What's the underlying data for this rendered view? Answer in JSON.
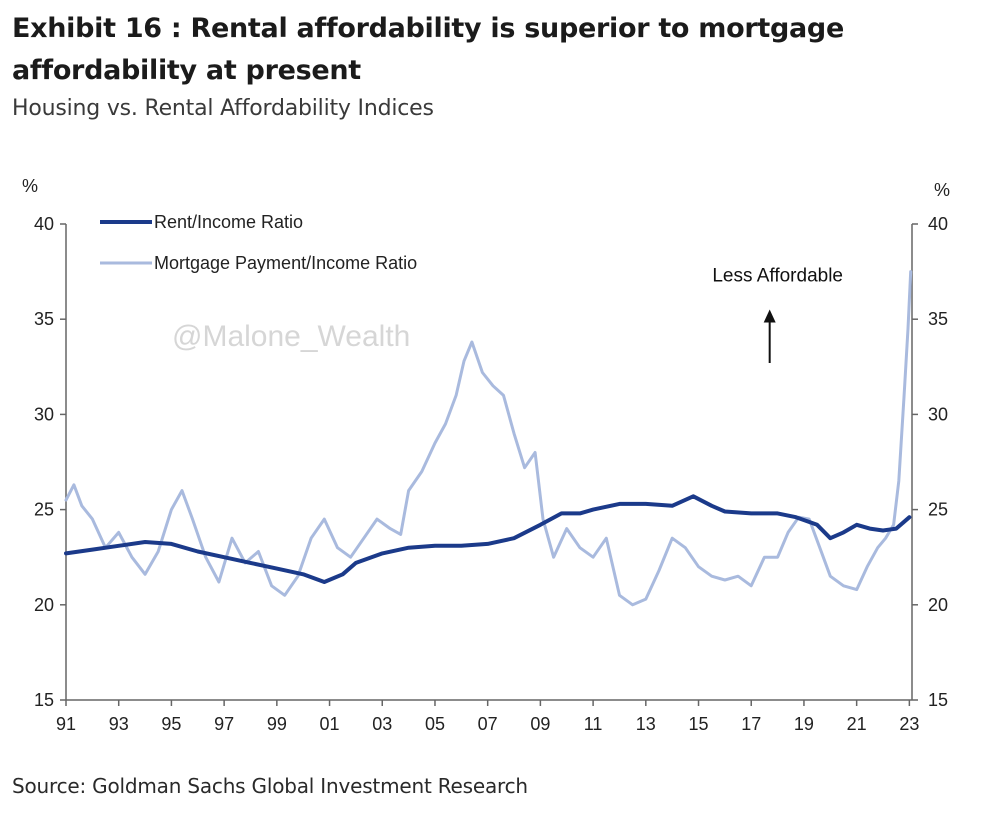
{
  "header": {
    "title": "Exhibit 16 : Rental affordability is superior to mortgage affordability at present",
    "subtitle": "Housing vs. Rental Affordability Indices"
  },
  "footer": {
    "source": "Source: Goldman Sachs Global Investment Research"
  },
  "watermark": "@Malone_Wealth",
  "chart_data": {
    "type": "line",
    "title": "Housing vs. Rental Affordability Indices",
    "ylabel_left": "%",
    "ylabel_right": "%",
    "ylim": [
      15,
      40
    ],
    "yticks": [
      15,
      20,
      25,
      30,
      35,
      40
    ],
    "xlim": [
      1991,
      2023.1
    ],
    "xticks": [
      1991,
      1993,
      1995,
      1997,
      1999,
      2001,
      2003,
      2005,
      2007,
      2009,
      2011,
      2013,
      2015,
      2017,
      2019,
      2021,
      2023
    ],
    "xtick_labels": [
      "91",
      "93",
      "95",
      "97",
      "99",
      "01",
      "03",
      "05",
      "07",
      "09",
      "11",
      "13",
      "15",
      "17",
      "19",
      "21",
      "23"
    ],
    "legend_position": "top-left",
    "grid": false,
    "annotation": {
      "text": "Less Affordable",
      "x": 2017.7,
      "y": 37.3,
      "arrow_from_y": 32.7,
      "arrow_to_y": 35.3
    },
    "colors": {
      "rent": "#1b3a8a",
      "mortgage": "#a9bade",
      "axis": "#666666"
    },
    "series": [
      {
        "name": "Rent/Income Ratio",
        "x": [
          1991,
          1992,
          1993,
          1994,
          1995,
          1996,
          1997,
          1998,
          1999,
          2000,
          2000.8,
          2001.5,
          2002,
          2003,
          2004,
          2005,
          2006,
          2007,
          2008,
          2009,
          2009.8,
          2010.5,
          2011,
          2012,
          2013,
          2014,
          2014.8,
          2015.5,
          2016,
          2017,
          2018,
          2018.7,
          2019.5,
          2020,
          2020.5,
          2021,
          2021.5,
          2022,
          2022.5,
          2023
        ],
        "values": [
          22.7,
          22.9,
          23.1,
          23.3,
          23.2,
          22.8,
          22.5,
          22.2,
          21.9,
          21.6,
          21.2,
          21.6,
          22.2,
          22.7,
          23.0,
          23.1,
          23.1,
          23.2,
          23.5,
          24.2,
          24.8,
          24.8,
          25.0,
          25.3,
          25.3,
          25.2,
          25.7,
          25.2,
          24.9,
          24.8,
          24.8,
          24.6,
          24.2,
          23.5,
          23.8,
          24.2,
          24.0,
          23.9,
          24.0,
          24.6
        ]
      },
      {
        "name": "Mortgage Payment/Income Ratio",
        "x": [
          1991,
          1991.3,
          1991.6,
          1992,
          1992.5,
          1993,
          1993.5,
          1994,
          1994.5,
          1995,
          1995.4,
          1995.8,
          1996.3,
          1996.8,
          1997.3,
          1997.8,
          1998.3,
          1998.8,
          1999.3,
          1999.8,
          2000.3,
          2000.8,
          2001.3,
          2001.8,
          2002.3,
          2002.8,
          2003.3,
          2003.7,
          2004,
          2004.5,
          2005,
          2005.4,
          2005.8,
          2006.1,
          2006.4,
          2006.8,
          2007.2,
          2007.6,
          2008,
          2008.4,
          2008.8,
          2009.1,
          2009.5,
          2010,
          2010.5,
          2011,
          2011.5,
          2012,
          2012.5,
          2013,
          2013.5,
          2014,
          2014.5,
          2015,
          2015.5,
          2016,
          2016.5,
          2017,
          2017.5,
          2018,
          2018.4,
          2018.8,
          2019.2,
          2019.6,
          2020,
          2020.5,
          2021,
          2021.4,
          2021.8,
          2022.1,
          2022.4,
          2022.6,
          2022.8,
          2022.95,
          2023.05
        ],
        "values": [
          25.5,
          26.3,
          25.2,
          24.5,
          23.0,
          23.8,
          22.5,
          21.6,
          22.8,
          25.0,
          26.0,
          24.5,
          22.5,
          21.2,
          23.5,
          22.2,
          22.8,
          21.0,
          20.5,
          21.5,
          23.5,
          24.5,
          23.0,
          22.5,
          23.5,
          24.5,
          24.0,
          23.7,
          26.0,
          27.0,
          28.5,
          29.5,
          31.0,
          32.8,
          33.8,
          32.2,
          31.5,
          31.0,
          29.0,
          27.2,
          28.0,
          24.5,
          22.5,
          24.0,
          23.0,
          22.5,
          23.5,
          20.5,
          20.0,
          20.3,
          21.8,
          23.5,
          23.0,
          22.0,
          21.5,
          21.3,
          21.5,
          21.0,
          22.5,
          22.5,
          23.8,
          24.6,
          24.5,
          23.0,
          21.5,
          21.0,
          20.8,
          22.0,
          23.0,
          23.5,
          24.2,
          26.5,
          31.0,
          34.5,
          37.5
        ]
      }
    ]
  }
}
